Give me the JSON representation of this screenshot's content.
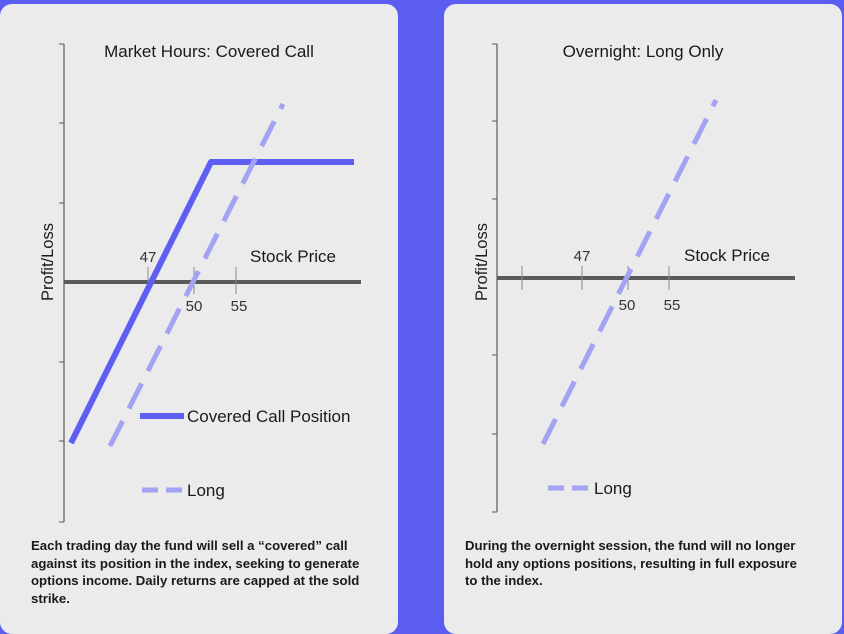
{
  "colors": {
    "background": "#5b5cf0",
    "panel": "#ebebeb",
    "axis": "#5a5a5a",
    "covered_call": "#5e5ef2",
    "long": "#a3a2f3",
    "text": "#1a1a1a"
  },
  "chart_data": [
    {
      "type": "line",
      "title": "Market Hours: Covered Call",
      "xlabel": "Stock Price",
      "ylabel": "Profit/Loss",
      "x_tick_labels": [
        "47",
        "50",
        "55"
      ],
      "legend": "bottom",
      "series": [
        {
          "name": "Covered Call Position",
          "style": "solid",
          "x": [
            40.6,
            54.1,
            69.3
          ],
          "y": [
            -4.2,
            3.2,
            3.2
          ]
        },
        {
          "name": "Long",
          "style": "dashed",
          "x": [
            44.6,
            60.6
          ],
          "y": [
            -4.3,
            4.6
          ]
        }
      ],
      "caption": "Each trading day the fund will sell a “covered” call against its position in the index, seeking to generate options income. Daily returns are capped at the sold strike."
    },
    {
      "type": "line",
      "title": "Overnight: Long Only",
      "xlabel": "Stock Price",
      "ylabel": "Profit/Loss",
      "x_tick_labels": [
        "47",
        "50",
        "55"
      ],
      "legend": "bottom",
      "series": [
        {
          "name": "Long",
          "style": "dashed",
          "x": [
            42.2,
            59.8
          ],
          "y": [
            -4.2,
            4.4
          ]
        }
      ],
      "caption": "During the overnight session, the fund will no longer hold any options positions, resulting in full exposure to the index."
    }
  ]
}
